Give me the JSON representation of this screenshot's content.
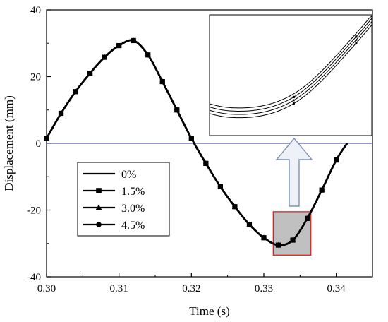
{
  "chart_data": {
    "type": "line",
    "xlabel": "Time (s)",
    "ylabel": "Displacement (mm)",
    "xlim": [
      0.3,
      0.345
    ],
    "ylim": [
      -40,
      40
    ],
    "xticks": [
      "0.30",
      "0.31",
      "0.32",
      "0.33",
      "0.34"
    ],
    "yticks": [
      "40",
      "20",
      "0",
      "-20",
      "-40"
    ],
    "zero_line": {
      "y": 0,
      "color": "#5b5ea6"
    },
    "legend_position": "left-middle",
    "series": [
      {
        "name": "0%",
        "marker": "none"
      },
      {
        "name": "1.5%",
        "marker": "square"
      },
      {
        "name": "3.0%",
        "marker": "triangle"
      },
      {
        "name": "4.5%",
        "marker": "circle"
      }
    ],
    "x": [
      0.3,
      0.302,
      0.304,
      0.306,
      0.308,
      0.31,
      0.312,
      0.314,
      0.316,
      0.318,
      0.32,
      0.322,
      0.324,
      0.326,
      0.328,
      0.33,
      0.332,
      0.334,
      0.336,
      0.338,
      0.34,
      0.3415
    ],
    "y": [
      1.5,
      9.0,
      15.5,
      21.0,
      25.8,
      29.3,
      30.8,
      26.5,
      18.5,
      10.0,
      1.5,
      -6.0,
      -13.0,
      -19.0,
      -24.3,
      -28.3,
      -30.5,
      -29.0,
      -22.5,
      -14.0,
      -5.0,
      0.0
    ],
    "marker_x": [
      0.3,
      0.302,
      0.304,
      0.306,
      0.308,
      0.31,
      0.312,
      0.314,
      0.316,
      0.318,
      0.32,
      0.322,
      0.324,
      0.326,
      0.328,
      0.33,
      0.332,
      0.334,
      0.336,
      0.338,
      0.34
    ],
    "highlight_region": {
      "x": [
        0.3313,
        0.3365
      ],
      "y": [
        -33.5,
        -20.5
      ],
      "fill": "#c0c0c0",
      "stroke": "#e02020"
    },
    "inset": {
      "description_hidden": true,
      "markers_visible": true
    }
  }
}
